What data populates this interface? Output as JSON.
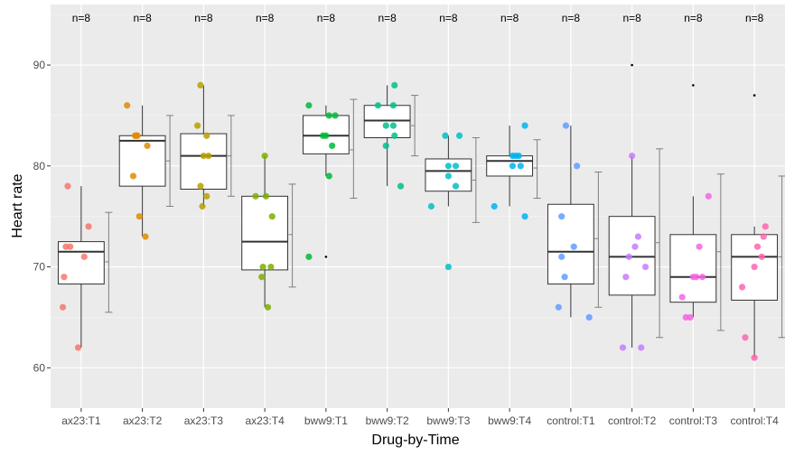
{
  "chart_data": {
    "type": "boxplot",
    "xlabel": "Drug-by-Time",
    "ylabel": "Heart rate",
    "ylim": [
      56,
      96
    ],
    "yticks": [
      60,
      70,
      80,
      90
    ],
    "grid": true,
    "legend": "none",
    "categories": [
      "ax23:T1",
      "ax23:T2",
      "ax23:T3",
      "ax23:T4",
      "bww9:T1",
      "bww9:T2",
      "bww9:T3",
      "bww9:T4",
      "control:T1",
      "control:T2",
      "control:T3",
      "control:T4"
    ],
    "count_labels": [
      "n=8",
      "n=8",
      "n=8",
      "n=8",
      "n=8",
      "n=8",
      "n=8",
      "n=8",
      "n=8",
      "n=8",
      "n=8",
      "n=8"
    ],
    "colors": [
      "#F8766D",
      "#DE8C00",
      "#B79F00",
      "#7CAE00",
      "#00BA38",
      "#00C08B",
      "#00BFC4",
      "#00B4F0",
      "#619CFF",
      "#C77CFF",
      "#F564E3",
      "#FF64B0"
    ],
    "boxes": [
      {
        "min": 62,
        "q1": 68.3,
        "median": 71.5,
        "q3": 72.5,
        "max": 78
      },
      {
        "min": 73,
        "q1": 78,
        "median": 82.5,
        "q3": 83,
        "max": 86
      },
      {
        "min": 76,
        "q1": 77.7,
        "median": 81,
        "q3": 83.2,
        "max": 88
      },
      {
        "min": 66,
        "q1": 69.7,
        "median": 72.5,
        "q3": 77,
        "max": 81
      },
      {
        "min": 79,
        "q1": 81.2,
        "median": 83,
        "q3": 85,
        "max": 86
      },
      {
        "min": 78,
        "q1": 82.8,
        "median": 84.5,
        "q3": 86,
        "max": 88
      },
      {
        "min": 76,
        "q1": 77.5,
        "median": 79.5,
        "q3": 80.7,
        "max": 83
      },
      {
        "min": 76,
        "q1": 79,
        "median": 80.5,
        "q3": 81,
        "max": 84
      },
      {
        "min": 65,
        "q1": 68.3,
        "median": 71.5,
        "q3": 76.2,
        "max": 84
      },
      {
        "min": 62,
        "q1": 67.2,
        "median": 71,
        "q3": 75,
        "max": 81
      },
      {
        "min": 65,
        "q1": 66.5,
        "median": 69,
        "q3": 73.2,
        "max": 77
      },
      {
        "min": 61,
        "q1": 66.7,
        "median": 71,
        "q3": 73.2,
        "max": 74
      }
    ],
    "error_bars": [
      {
        "low": 65.5,
        "mean": 70.5,
        "high": 75.4
      },
      {
        "low": 76.0,
        "mean": 80.5,
        "high": 85.0
      },
      {
        "low": 77.0,
        "mean": 81.0,
        "high": 85.0
      },
      {
        "low": 68.0,
        "mean": 73.2,
        "high": 78.2
      },
      {
        "low": 76.8,
        "mean": 81.6,
        "high": 86.6
      },
      {
        "low": 81.0,
        "mean": 84.0,
        "high": 87.0
      },
      {
        "low": 74.4,
        "mean": 78.6,
        "high": 82.8
      },
      {
        "low": 76.8,
        "mean": 79.8,
        "high": 82.6
      },
      {
        "low": 66.0,
        "mean": 72.8,
        "high": 79.4
      },
      {
        "low": 63.0,
        "mean": 72.4,
        "high": 81.7
      },
      {
        "low": 63.7,
        "mean": 71.5,
        "high": 79.2
      },
      {
        "low": 63.0,
        "mean": 71.0,
        "high": 79.0
      }
    ],
    "outliers": [
      {
        "x": 4,
        "y": 71
      },
      {
        "x": 9,
        "y": 90
      },
      {
        "x": 10,
        "y": 88
      },
      {
        "x": 11,
        "y": 87
      }
    ],
    "points": [
      [
        {
          "dx": -0.3,
          "y": 66
        },
        {
          "dx": -0.28,
          "y": 69
        },
        {
          "dx": -0.25,
          "y": 72
        },
        {
          "dx": -0.18,
          "y": 72
        },
        {
          "dx": -0.22,
          "y": 78
        },
        {
          "dx": -0.05,
          "y": 62
        },
        {
          "dx": 0.12,
          "y": 74
        },
        {
          "dx": 0.05,
          "y": 71
        }
      ],
      [
        {
          "dx": -0.25,
          "y": 86
        },
        {
          "dx": -0.08,
          "y": 83
        },
        {
          "dx": -0.12,
          "y": 83
        },
        {
          "dx": -0.15,
          "y": 79
        },
        {
          "dx": 0.08,
          "y": 82
        },
        {
          "dx": -0.05,
          "y": 75
        },
        {
          "dx": 0.05,
          "y": 73
        },
        {
          "dx": -0.1,
          "y": 83
        }
      ],
      [
        {
          "dx": -0.05,
          "y": 88
        },
        {
          "dx": -0.1,
          "y": 84
        },
        {
          "dx": 0.05,
          "y": 83
        },
        {
          "dx": 0.0,
          "y": 81
        },
        {
          "dx": 0.08,
          "y": 81
        },
        {
          "dx": -0.05,
          "y": 78
        },
        {
          "dx": 0.05,
          "y": 77
        },
        {
          "dx": -0.02,
          "y": 76
        }
      ],
      [
        {
          "dx": -0.15,
          "y": 77
        },
        {
          "dx": 0.0,
          "y": 81
        },
        {
          "dx": 0.02,
          "y": 77
        },
        {
          "dx": 0.12,
          "y": 75
        },
        {
          "dx": -0.03,
          "y": 70
        },
        {
          "dx": 0.1,
          "y": 70
        },
        {
          "dx": -0.05,
          "y": 69
        },
        {
          "dx": 0.05,
          "y": 66
        }
      ],
      [
        {
          "dx": -0.28,
          "y": 86
        },
        {
          "dx": -0.05,
          "y": 83
        },
        {
          "dx": 0.0,
          "y": 83
        },
        {
          "dx": 0.05,
          "y": 85
        },
        {
          "dx": 0.15,
          "y": 85
        },
        {
          "dx": 0.1,
          "y": 82
        },
        {
          "dx": 0.05,
          "y": 79
        },
        {
          "dx": -0.28,
          "y": 71
        }
      ],
      [
        {
          "dx": -0.15,
          "y": 86
        },
        {
          "dx": 0.12,
          "y": 88
        },
        {
          "dx": 0.1,
          "y": 86
        },
        {
          "dx": -0.02,
          "y": 84
        },
        {
          "dx": 0.1,
          "y": 84
        },
        {
          "dx": 0.12,
          "y": 83
        },
        {
          "dx": -0.02,
          "y": 82
        },
        {
          "dx": 0.22,
          "y": 78
        }
      ],
      [
        {
          "dx": -0.05,
          "y": 83
        },
        {
          "dx": 0.18,
          "y": 83
        },
        {
          "dx": 0.0,
          "y": 80
        },
        {
          "dx": 0.12,
          "y": 80
        },
        {
          "dx": 0.0,
          "y": 79
        },
        {
          "dx": 0.12,
          "y": 78
        },
        {
          "dx": -0.28,
          "y": 76
        },
        {
          "dx": 0.0,
          "y": 70
        }
      ],
      [
        {
          "dx": 0.25,
          "y": 84
        },
        {
          "dx": 0.05,
          "y": 81
        },
        {
          "dx": 0.15,
          "y": 81
        },
        {
          "dx": 0.18,
          "y": 80
        },
        {
          "dx": 0.05,
          "y": 80
        },
        {
          "dx": -0.25,
          "y": 76
        },
        {
          "dx": 0.25,
          "y": 75
        },
        {
          "dx": 0.1,
          "y": 81
        }
      ],
      [
        {
          "dx": -0.08,
          "y": 84
        },
        {
          "dx": 0.1,
          "y": 80
        },
        {
          "dx": -0.15,
          "y": 75
        },
        {
          "dx": 0.05,
          "y": 72
        },
        {
          "dx": -0.15,
          "y": 71
        },
        {
          "dx": -0.1,
          "y": 69
        },
        {
          "dx": -0.2,
          "y": 66
        },
        {
          "dx": 0.3,
          "y": 65
        }
      ],
      [
        {
          "dx": 0.0,
          "y": 81
        },
        {
          "dx": 0.1,
          "y": 73
        },
        {
          "dx": 0.22,
          "y": 70
        },
        {
          "dx": -0.1,
          "y": 69
        },
        {
          "dx": -0.15,
          "y": 62
        },
        {
          "dx": 0.15,
          "y": 62
        },
        {
          "dx": 0.05,
          "y": 72
        },
        {
          "dx": -0.05,
          "y": 71
        }
      ],
      [
        {
          "dx": 0.25,
          "y": 77
        },
        {
          "dx": 0.1,
          "y": 72
        },
        {
          "dx": 0.0,
          "y": 69
        },
        {
          "dx": 0.05,
          "y": 69
        },
        {
          "dx": 0.15,
          "y": 69
        },
        {
          "dx": -0.18,
          "y": 67
        },
        {
          "dx": -0.12,
          "y": 65
        },
        {
          "dx": -0.05,
          "y": 65
        }
      ],
      [
        {
          "dx": 0.18,
          "y": 74
        },
        {
          "dx": 0.15,
          "y": 73
        },
        {
          "dx": 0.05,
          "y": 72
        },
        {
          "dx": 0.0,
          "y": 70
        },
        {
          "dx": -0.2,
          "y": 68
        },
        {
          "dx": -0.15,
          "y": 63
        },
        {
          "dx": 0.0,
          "y": 61
        },
        {
          "dx": 0.12,
          "y": 71
        }
      ]
    ]
  }
}
